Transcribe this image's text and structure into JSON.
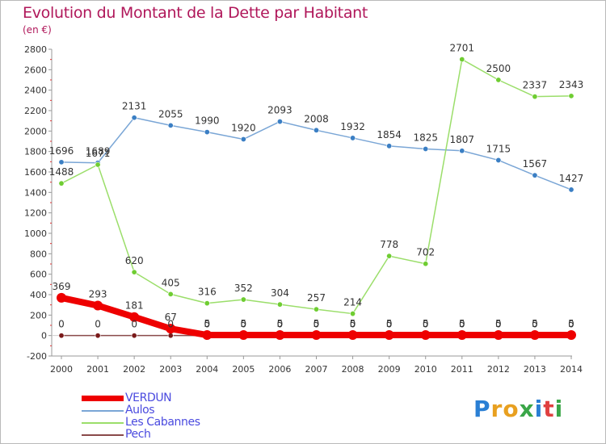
{
  "title": "Evolution du Montant de la Dette par Habitant",
  "subtitle": "(en €)",
  "logo": {
    "text": "Proxiti",
    "colors": [
      "#2a7fd4",
      "#e8a020",
      "#e8a020",
      "#3aa648",
      "#2a7fd4",
      "#e04040",
      "#3aa648"
    ]
  },
  "chart_data": {
    "type": "line",
    "x": [
      "2000",
      "2001",
      "2002",
      "2003",
      "2004",
      "2005",
      "2006",
      "2007",
      "2008",
      "2009",
      "2010",
      "2011",
      "2012",
      "2013",
      "2014"
    ],
    "ylim": [
      -200,
      2800
    ],
    "yticks": [
      -200,
      0,
      200,
      400,
      600,
      800,
      1000,
      1200,
      1400,
      1600,
      1800,
      2000,
      2200,
      2400,
      2600,
      2800
    ],
    "grid": false,
    "legend_position": "bottom-left",
    "series": [
      {
        "name": "VERDUN",
        "color": "#ee0000",
        "thick": true,
        "values": [
          369,
          293,
          181,
          67,
          5,
          5,
          5,
          5,
          5,
          5,
          5,
          5,
          5,
          5,
          5
        ]
      },
      {
        "name": "Aulos",
        "color": "#7aa6d6",
        "marker": "#3b7fc4",
        "values": [
          1696,
          1689,
          2131,
          2055,
          1990,
          1920,
          2093,
          2008,
          1932,
          1854,
          1825,
          1807,
          1715,
          1567,
          1427
        ]
      },
      {
        "name": "Les Cabannes",
        "color": "#9bde6a",
        "marker": "#6fcd32",
        "values": [
          1488,
          1671,
          620,
          405,
          316,
          352,
          304,
          257,
          214,
          778,
          702,
          2701,
          2500,
          2337,
          2343
        ]
      },
      {
        "name": "Pech",
        "color": "#8a4a4a",
        "marker": "#7a1a1a",
        "values": [
          0,
          0,
          0,
          0,
          0,
          0,
          0,
          0,
          0,
          0,
          0,
          0,
          0,
          0,
          0
        ]
      }
    ]
  }
}
